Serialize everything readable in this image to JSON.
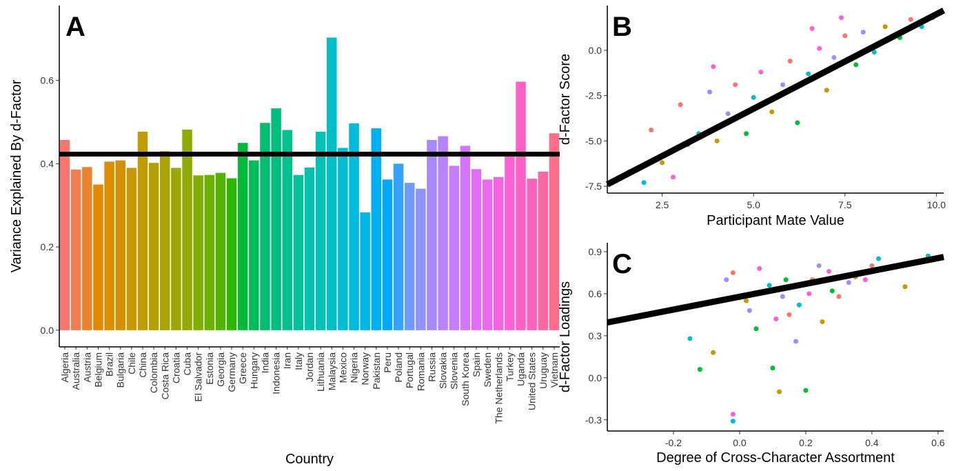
{
  "chart_data": [
    {
      "type": "bar",
      "panel_label": "A",
      "x_label": "Country",
      "y_label": "Variance Explained By d-Factor",
      "categories": [
        "Algeria",
        "Australia",
        "Austria",
        "Belgium",
        "Brazil",
        "Bulgaria",
        "Chile",
        "China",
        "Colombia",
        "Costa Rica",
        "Croatia",
        "Cuba",
        "El Salvador",
        "Estonia",
        "Georgia",
        "Germany",
        "Greece",
        "Hungary",
        "India",
        "Indonesia",
        "Iran",
        "Italy",
        "Jordan",
        "Lithuania",
        "Malaysia",
        "Mexico",
        "Nigeria",
        "Norway",
        "Pakistan",
        "Peru",
        "Poland",
        "Portugal",
        "Romania",
        "Russia",
        "Slovakia",
        "Slovenia",
        "South Korea",
        "Spain",
        "Sweden",
        "The Netherlands",
        "Turkey",
        "Uganda",
        "United States",
        "Uruguay",
        "Vietnam"
      ],
      "values": [
        0.457,
        0.386,
        0.392,
        0.35,
        0.405,
        0.408,
        0.39,
        0.477,
        0.402,
        0.43,
        0.39,
        0.482,
        0.372,
        0.373,
        0.378,
        0.365,
        0.45,
        0.408,
        0.498,
        0.533,
        0.481,
        0.373,
        0.391,
        0.477,
        0.703,
        0.438,
        0.497,
        0.283,
        0.485,
        0.362,
        0.4,
        0.354,
        0.34,
        0.457,
        0.466,
        0.395,
        0.443,
        0.387,
        0.362,
        0.368,
        0.418,
        0.597,
        0.364,
        0.381,
        0.473
      ],
      "colors": [
        "#F8766D",
        "#F17D51",
        "#EA8331",
        "#E38900",
        "#DB8E00",
        "#D29200",
        "#C99800",
        "#BF9C00",
        "#B49F00",
        "#A9A400",
        "#9CA700",
        "#8FAA00",
        "#7FAE00",
        "#6BB100",
        "#53B400",
        "#2EB700",
        "#00BA38",
        "#00BC56",
        "#00BE6C",
        "#00BF7D",
        "#00C08E",
        "#00C19D",
        "#00C1AB",
        "#00C0B8",
        "#00BFC4",
        "#00BDD0",
        "#00BADB",
        "#00B6E6",
        "#00B0F0",
        "#00A9FF",
        "#35A2FF",
        "#6F9BFF",
        "#8F91FF",
        "#A58AFF",
        "#B983FF",
        "#C77CFF",
        "#D575FE",
        "#E16FF5",
        "#EB69EC",
        "#F464E2",
        "#FA62D5",
        "#FD61C6",
        "#FF62BC",
        "#FF67A4",
        "#FC6E89"
      ],
      "hline": 0.423,
      "ylim": [
        -0.04,
        0.78
      ],
      "yticks": [
        {
          "value": 0,
          "label": "0.0"
        },
        0.2,
        0.4,
        0.6
      ]
    },
    {
      "type": "scatter",
      "panel_label": "B",
      "x_label": "Participant Mate Value",
      "y_label": "d-Factor Score",
      "xlim": [
        1.0,
        10.2
      ],
      "ylim": [
        -7.88,
        2.47
      ],
      "xticks": [
        2.5,
        {
          "value": 5,
          "label": "5.0"
        },
        7.5,
        {
          "value": 10,
          "label": "10.0"
        }
      ],
      "yticks": [
        -7.5,
        {
          "value": -5,
          "label": "-5.0"
        },
        -2.5,
        {
          "value": 0,
          "label": "0.0"
        }
      ],
      "trend": {
        "x": [
          1.0,
          10.2
        ],
        "y": [
          -7.4,
          2.2
        ]
      },
      "series": [
        {
          "color": "#F8766D",
          "x": [
            2.2,
            3.0,
            4.5,
            6.0,
            7.5,
            9.3
          ],
          "values": [
            -4.4,
            -3.0,
            -1.9,
            -0.6,
            0.8,
            1.7
          ]
        },
        {
          "color": "#C49A00",
          "x": [
            1.6,
            2.5,
            4.0,
            5.5,
            7.0,
            8.6
          ],
          "values": [
            -6.7,
            -6.2,
            -5.0,
            -3.4,
            -2.2,
            1.3
          ]
        },
        {
          "color": "#00BA38",
          "x": [
            3.2,
            4.8,
            6.2,
            7.8,
            9.0
          ],
          "values": [
            -5.2,
            -4.6,
            -4.0,
            -0.8,
            0.7
          ]
        },
        {
          "color": "#00BFC4",
          "x": [
            2.0,
            3.5,
            5.0,
            6.5,
            8.3,
            9.6
          ],
          "values": [
            -7.3,
            -4.6,
            -2.6,
            -1.3,
            -0.1,
            1.3
          ]
        },
        {
          "color": "#A58AFF",
          "x": [
            3.8,
            4.3,
            5.8,
            7.2,
            8.0,
            9.9
          ],
          "values": [
            -2.3,
            -3.5,
            -1.9,
            -0.4,
            1.0,
            1.8
          ]
        },
        {
          "color": "#FB61D7",
          "x": [
            2.8,
            3.9,
            5.2,
            6.6,
            6.8,
            7.4
          ],
          "values": [
            -7.0,
            -0.9,
            -1.2,
            1.2,
            0.1,
            1.8
          ]
        }
      ]
    },
    {
      "type": "scatter",
      "panel_label": "C",
      "x_label": "Degree of Cross-Character Assortment",
      "y_label": "d-Factor Loadings",
      "xlim": [
        -0.4,
        0.617
      ],
      "ylim": [
        -0.38,
        0.964
      ],
      "xticks": [
        -0.2,
        {
          "value": 0,
          "label": "0.0"
        },
        0.2,
        0.4,
        0.6
      ],
      "yticks": [
        -0.3,
        {
          "value": 0,
          "label": "0.0"
        },
        0.3,
        0.6,
        0.9
      ],
      "trend": {
        "x": [
          -0.4,
          0.617
        ],
        "y": [
          0.395,
          0.862
        ]
      },
      "series": [
        {
          "color": "#F8766D",
          "x": [
            -0.02,
            0.08,
            0.15,
            0.22,
            0.3,
            0.4
          ],
          "values": [
            0.75,
            0.62,
            0.45,
            0.7,
            0.58,
            0.8
          ]
        },
        {
          "color": "#C49A00",
          "x": [
            -0.08,
            0.02,
            0.12,
            0.25,
            0.5,
            0.35
          ],
          "values": [
            0.18,
            0.55,
            -0.1,
            0.4,
            0.65,
            0.72
          ]
        },
        {
          "color": "#00BA38",
          "x": [
            -0.12,
            0.05,
            0.14,
            0.2,
            0.28,
            0.1
          ],
          "values": [
            0.06,
            0.35,
            0.7,
            -0.09,
            0.62,
            0.07
          ]
        },
        {
          "color": "#00BFC4",
          "x": [
            -0.15,
            -0.02,
            0.09,
            0.18,
            0.42,
            0.57
          ],
          "values": [
            0.28,
            -0.31,
            0.66,
            0.52,
            0.85,
            0.87
          ]
        },
        {
          "color": "#A58AFF",
          "x": [
            -0.04,
            0.03,
            0.17,
            0.24,
            0.33,
            0.13
          ],
          "values": [
            0.7,
            0.48,
            0.26,
            0.8,
            0.68,
            0.58
          ]
        },
        {
          "color": "#FB61D7",
          "x": [
            -0.02,
            0.06,
            0.11,
            0.21,
            0.27,
            0.38
          ],
          "values": [
            -0.26,
            0.78,
            0.42,
            0.6,
            0.76,
            0.7
          ]
        }
      ]
    }
  ]
}
